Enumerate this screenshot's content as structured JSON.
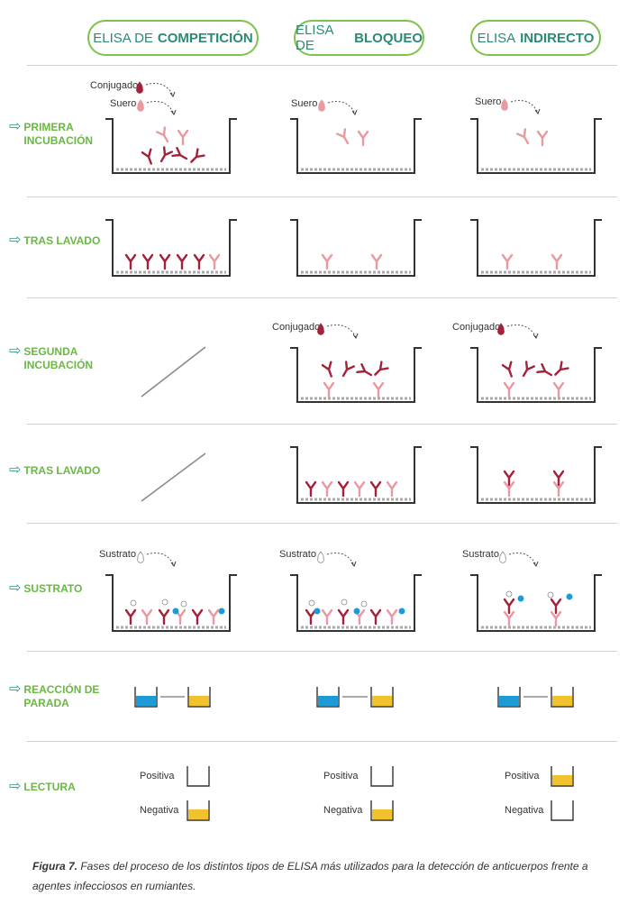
{
  "headers": [
    {
      "prefix": "ELISA DE",
      "bold": "COMPETICIÓN"
    },
    {
      "prefix": "ELISA DE",
      "bold": "BLOQUEO"
    },
    {
      "prefix": "ELISA",
      "bold": "INDIRECTO"
    }
  ],
  "steps": [
    {
      "line1": "PRIMERA",
      "line2": "INCUBACIÓN"
    },
    {
      "line1": "TRAS LAVADO",
      "line2": ""
    },
    {
      "line1": "SEGUNDA",
      "line2": "INCUBACIÓN"
    },
    {
      "line1": "TRAS LAVADO",
      "line2": ""
    },
    {
      "line1": "SUSTRATO",
      "line2": ""
    },
    {
      "line1": "REACCIÓN DE",
      "line2": "PARADA"
    },
    {
      "line1": "LECTURA",
      "line2": ""
    }
  ],
  "labels": {
    "conjugado": "Conjugado",
    "suero": "Suero",
    "sustrato": "Sustrato",
    "positiva": "Positiva",
    "negativa": "Negativa"
  },
  "caption": {
    "bold": "Figura 7.",
    "text": " Fases del proceso de los distintos tipos de ELISA más utilizados para la detección de anticuerpos frente a agentes infecciosos en rumiantes."
  },
  "colors": {
    "green_border": "#7dc24b",
    "teal_text": "#2a8a74",
    "step_green": "#6ab843",
    "dark_red": "#a3223a",
    "pink": "#e89aa0",
    "blue": "#1e9bd7",
    "yellow": "#f2c12e"
  }
}
